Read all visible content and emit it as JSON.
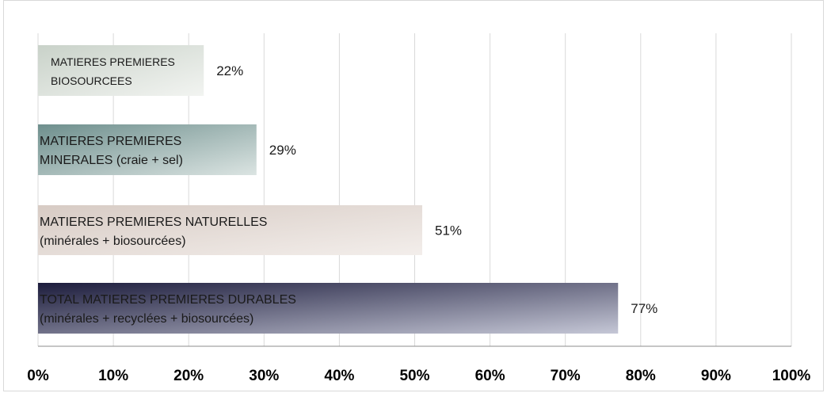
{
  "chart_data": {
    "type": "bar",
    "orientation": "horizontal",
    "categories": [
      [
        "MATIERES PREMIERES",
        "BIOSOURCEES"
      ],
      [
        "MATIERES PREMIERES",
        "MINERALES (craie + sel)"
      ],
      [
        "MATIERES PREMIERES NATURELLES",
        "(minérales + biosourcées)"
      ],
      [
        "TOTAL MATIERES PREMIERES DURABLES",
        "(minérales + recyclées + biosourcées)"
      ]
    ],
    "values": [
      22,
      29,
      51,
      77
    ],
    "value_labels": [
      "22%",
      "29%",
      "51%",
      "77%"
    ],
    "xlim": [
      0,
      100
    ],
    "ticks": [
      "0%",
      "10%",
      "20%",
      "30%",
      "40%",
      "50%",
      "60%",
      "70%",
      "80%",
      "90%",
      "100%"
    ],
    "grid": true,
    "bar_colors": [
      [
        "#c9d2c9",
        "#f2f4f1"
      ],
      [
        "#6e8f8d",
        "#dbe4e2"
      ],
      [
        "#d7cbc4",
        "#f3eeeb"
      ],
      [
        "#1c1c3c",
        "#c5c7d6"
      ]
    ],
    "xlabel": "",
    "ylabel": "",
    "title": ""
  }
}
